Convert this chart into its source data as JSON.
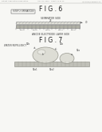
{
  "bg_color": "#f7f7f4",
  "header_text": "Patent Application Publication",
  "header_text2": "Apr. 22, 2010   Sheet 14 of 14",
  "header_text3": "US 2010/0099000 A1",
  "fig6_title": "F I G . 6",
  "fig6_step_label": "(STEP 2 OPERATION)",
  "fig6_sep_label": "SEPARATOR SIDE",
  "fig6_sep_num": "23",
  "fig6_num_right": "70",
  "fig6_anode_label": "ANODE ELECTRODE LAYER SIDE",
  "fig6_nums_bottom": [
    "MaA1",
    "MaA2",
    "MaA3",
    "MaA4",
    "MaA5"
  ],
  "fig7_title": "F I G . 7",
  "fig7_wr_label": "WATER REPELLENCY",
  "fig7_num_52b_left": "52b",
  "fig7_num_b": "b",
  "fig7_num_52b_right": "52b",
  "fig7_num_52a": "52a",
  "fig7_num_52a1": "52a1",
  "fig7_num_52a2": "52a2",
  "sep_bar_color_light": "#e2e2da",
  "sep_bar_color_dark": "#b0b0a5",
  "water_fill": "#ddddd5",
  "water_edge": "#999990",
  "surf_fill": "#c0c0b8",
  "surf_edge": "#888880",
  "text_dark": "#222222",
  "text_mid": "#444444",
  "text_light": "#666666"
}
